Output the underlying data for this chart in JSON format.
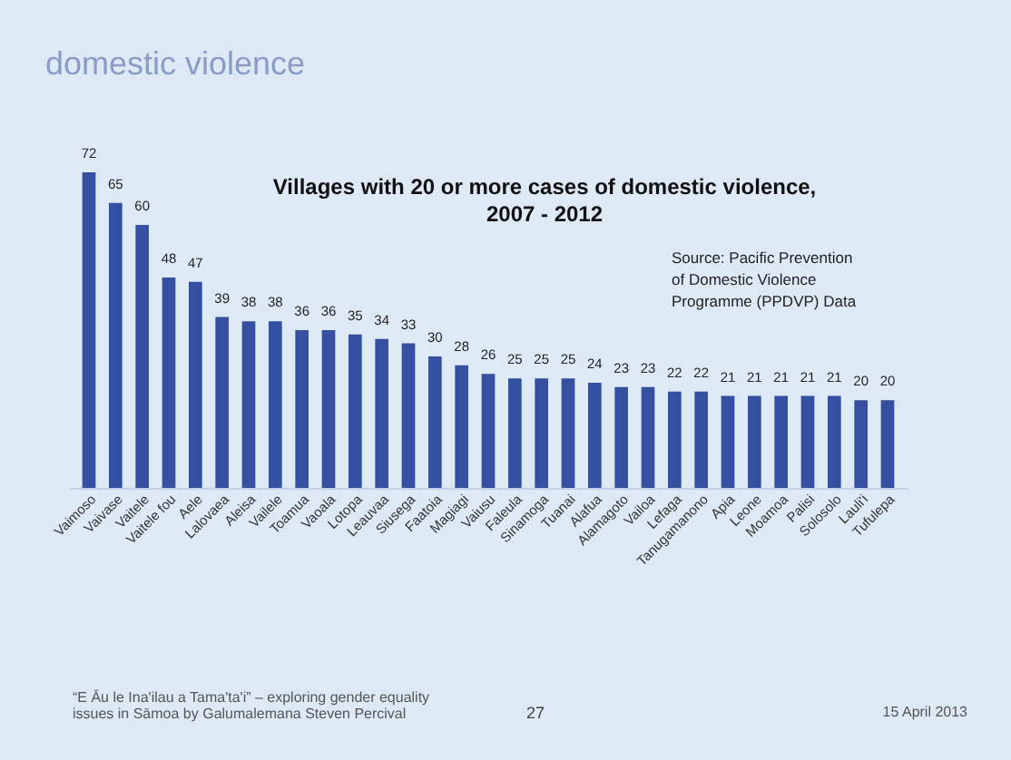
{
  "chart_data": {
    "type": "bar",
    "title": "domestic violence",
    "subtitle": "Villages with 20 or more cases of domestic violence,\n2007 - 2012",
    "categories": [
      "Vaimoso",
      "Vaivase",
      "Vaitele",
      "Vaitele fou",
      "Aele",
      "Lalovaea",
      "Aleisa",
      "Vailele",
      "Toamua",
      "Vaoala",
      "Lotopa",
      "Leauvaa",
      "Siusega",
      "Faatoia",
      "Magiagi",
      "Vaiusu",
      "Faleula",
      "Sinamoga",
      "Tuanai",
      "Alafua",
      "Alamagoto",
      "Vailoa",
      "Lefaga",
      "Tanugamanono",
      "Apia",
      "Leone",
      "Moamoa",
      "Palisi",
      "Solosolo",
      "Lauli'i",
      "Tufulepa"
    ],
    "values": [
      72,
      65,
      60,
      48,
      47,
      39,
      38,
      38,
      36,
      36,
      35,
      34,
      33,
      30,
      28,
      26,
      25,
      25,
      25,
      24,
      23,
      23,
      22,
      22,
      21,
      21,
      21,
      21,
      21,
      20,
      20
    ],
    "color": "#3550a0",
    "data_labels": true,
    "tick_labels": "x",
    "annotations": [
      "Source: Pacific Prevention\nof Domestic Violence\nProgramme (PPDVP) Data",
      "“E Āu le Ina'ilau a Tama'ta'i” – exploring gender equality\nissues in Sāmoa by Galumalemana Steven Percival",
      "27",
      "15 April 2013"
    ]
  }
}
